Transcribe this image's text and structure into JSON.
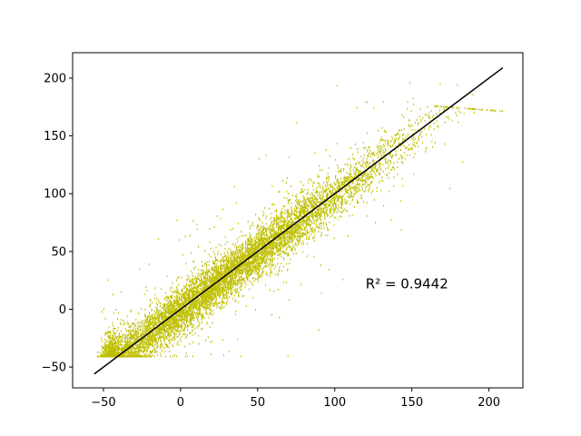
{
  "chart_data": {
    "type": "scatter",
    "title": "",
    "xlabel": "",
    "ylabel": "",
    "xlim": [
      -70,
      222
    ],
    "ylim": [
      -68,
      222
    ],
    "xticks": [
      -50,
      0,
      50,
      100,
      150,
      200
    ],
    "yticks": [
      -50,
      0,
      50,
      100,
      150,
      200
    ],
    "grid": false,
    "point_color": "#bfbf00",
    "line_color": "#000000",
    "annotation": "R² = 0.9442",
    "annotation_position": {
      "x": 120,
      "y": 22
    },
    "fit_line": {
      "x": [
        -56,
        209
      ],
      "y": [
        -56,
        209
      ]
    },
    "point_cloud": {
      "x_range": [
        -45,
        210
      ],
      "y_range": [
        -40,
        178
      ],
      "approx_points": 100000,
      "correlation": 0.97
    }
  }
}
